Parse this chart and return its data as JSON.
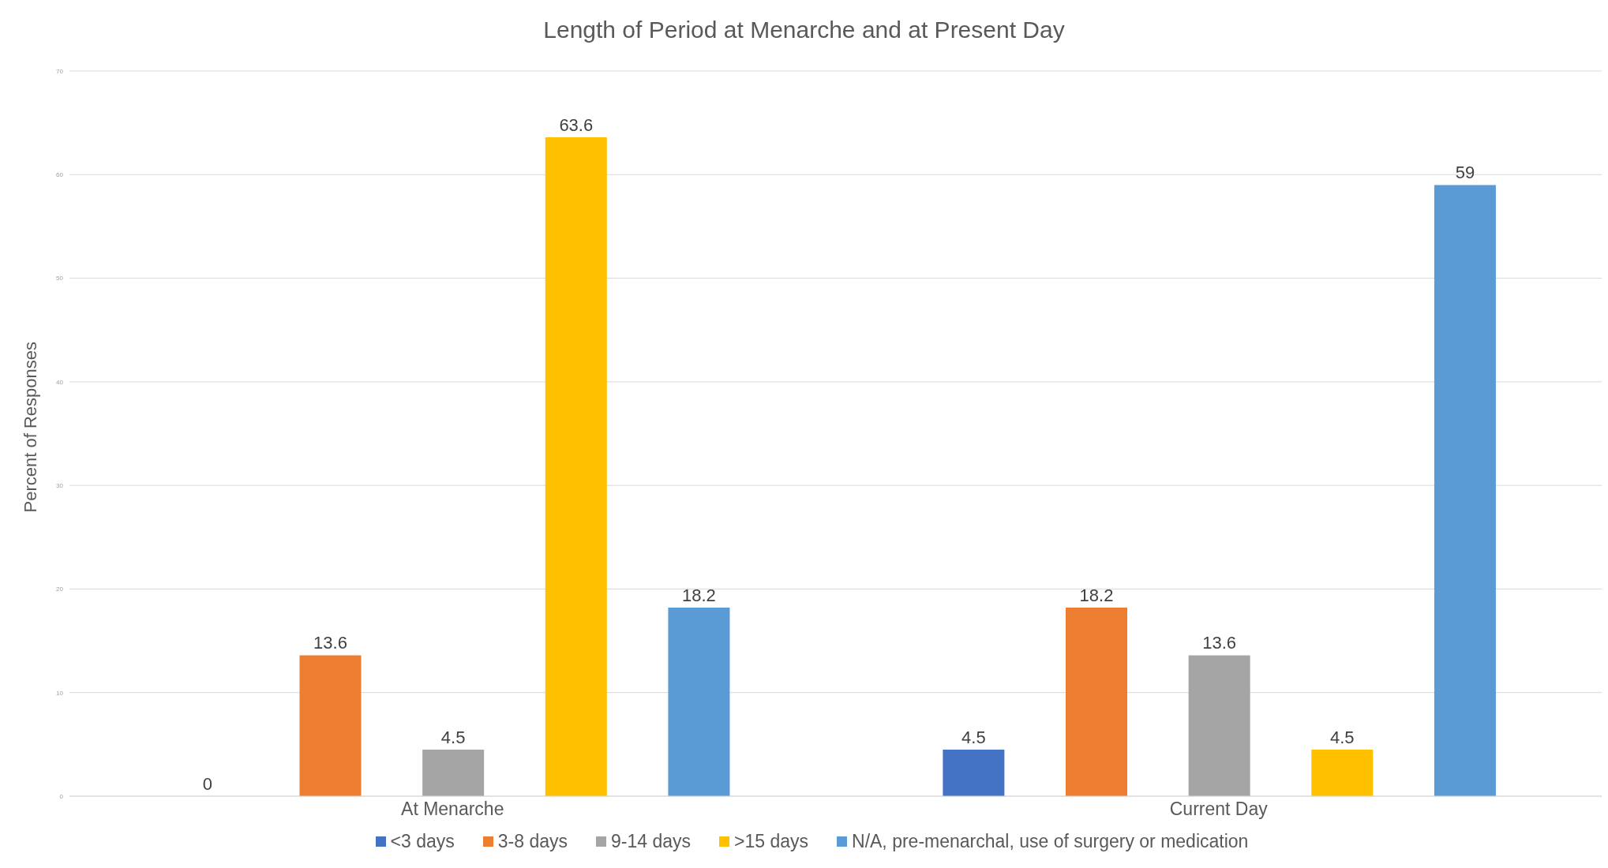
{
  "chart_data": {
    "type": "bar",
    "title": "Length of Period at Menarche and at Present Day",
    "ylabel": "Percent of Responses",
    "categories": [
      "At Menarche",
      "Current Day"
    ],
    "series": [
      {
        "name": "<3 days",
        "color": "#4472c4",
        "values": [
          0,
          4.5
        ]
      },
      {
        "name": "3-8 days",
        "color": "#ed7d31",
        "values": [
          13.6,
          18.2
        ]
      },
      {
        "name": "9-14 days",
        "color": "#a5a5a5",
        "values": [
          4.5,
          13.6
        ]
      },
      {
        "name": ">15 days",
        "color": "#ffc000",
        "values": [
          63.6,
          4.5
        ]
      },
      {
        "name": "N/A, pre-menarchal, use of surgery or medication",
        "color": "#5b9bd5",
        "values": [
          18.2,
          59
        ]
      }
    ],
    "ylim": [
      0,
      70
    ],
    "yticks": [
      0,
      10,
      20,
      30,
      40,
      50,
      60,
      70
    ],
    "grid": "y",
    "legend": "bottom",
    "data_labels": true
  }
}
